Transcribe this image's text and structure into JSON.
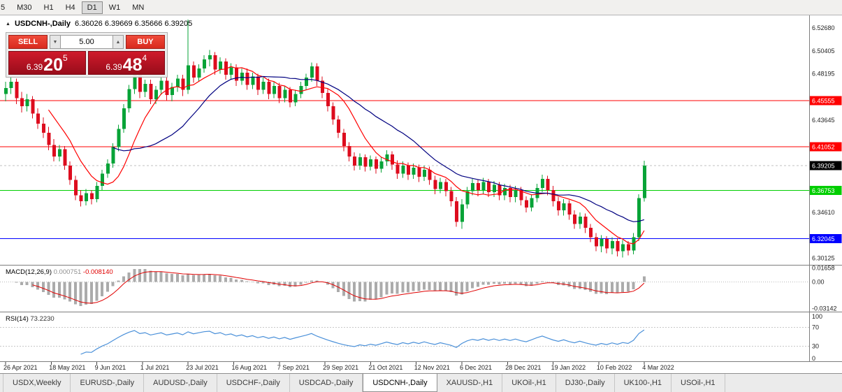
{
  "toolbar": {
    "timeframes": [
      {
        "label": "5",
        "active": false
      },
      {
        "label": "M30",
        "active": false
      },
      {
        "label": "H1",
        "active": false
      },
      {
        "label": "H4",
        "active": false
      },
      {
        "label": "D1",
        "active": true
      },
      {
        "label": "W1",
        "active": false
      },
      {
        "label": "MN",
        "active": false
      }
    ]
  },
  "chart_header": {
    "icon": "▲",
    "title": "USDCNH-,Daily",
    "ohlc": "6.36026 6.39669 6.35666 6.39205"
  },
  "trade_panel": {
    "sell_label": "SELL",
    "buy_label": "BUY",
    "lot": "5.00",
    "spin_down": "▼",
    "spin_up": "▲",
    "bid": {
      "prefix": "6.39",
      "big": "20",
      "sup": "5"
    },
    "ask": {
      "prefix": "6.39",
      "big": "48",
      "sup": "4"
    }
  },
  "chart_data": {
    "type": "candlestick",
    "symbol": "USDCNH-",
    "timeframe": "Daily",
    "price_min": 6.2955,
    "price_max": 6.539,
    "bull_color": "#07a337",
    "bear_color": "#dd0c1e",
    "candles": [
      [
        6.462,
        6.474,
        6.455,
        6.468
      ],
      [
        6.468,
        6.479,
        6.462,
        6.474
      ],
      [
        6.474,
        6.477,
        6.452,
        6.458
      ],
      [
        6.458,
        6.464,
        6.444,
        6.45
      ],
      [
        6.45,
        6.462,
        6.445,
        6.457
      ],
      [
        6.457,
        6.46,
        6.438,
        6.443
      ],
      [
        6.443,
        6.448,
        6.428,
        6.433
      ],
      [
        6.433,
        6.439,
        6.419,
        6.424
      ],
      [
        6.424,
        6.43,
        6.407,
        6.412
      ],
      [
        6.412,
        6.418,
        6.396,
        6.401
      ],
      [
        6.401,
        6.412,
        6.396,
        6.408
      ],
      [
        6.408,
        6.411,
        6.388,
        6.392
      ],
      [
        6.392,
        6.396,
        6.373,
        6.378
      ],
      [
        6.378,
        6.382,
        6.358,
        6.363
      ],
      [
        6.363,
        6.368,
        6.352,
        6.357
      ],
      [
        6.357,
        6.369,
        6.353,
        6.365
      ],
      [
        6.365,
        6.368,
        6.354,
        6.359
      ],
      [
        6.359,
        6.376,
        6.356,
        6.372
      ],
      [
        6.372,
        6.388,
        6.368,
        6.384
      ],
      [
        6.384,
        6.398,
        6.38,
        6.394
      ],
      [
        6.394,
        6.414,
        6.39,
        6.41
      ],
      [
        6.41,
        6.432,
        6.406,
        6.428
      ],
      [
        6.428,
        6.452,
        6.424,
        6.448
      ],
      [
        6.448,
        6.471,
        6.444,
        6.467
      ],
      [
        6.467,
        6.489,
        6.462,
        6.483
      ],
      [
        6.483,
        6.487,
        6.458,
        6.464
      ],
      [
        6.464,
        6.476,
        6.459,
        6.472
      ],
      [
        6.472,
        6.476,
        6.452,
        6.457
      ],
      [
        6.457,
        6.47,
        6.452,
        6.466
      ],
      [
        6.466,
        6.479,
        6.461,
        6.475
      ],
      [
        6.475,
        6.479,
        6.456,
        6.461
      ],
      [
        6.461,
        6.473,
        6.455,
        6.469
      ],
      [
        6.469,
        6.481,
        6.464,
        6.477
      ],
      [
        6.477,
        6.481,
        6.46,
        6.466
      ],
      [
        6.466,
        6.535,
        6.462,
        6.49
      ],
      [
        6.49,
        6.494,
        6.473,
        6.478
      ],
      [
        6.478,
        6.491,
        6.474,
        6.487
      ],
      [
        6.487,
        6.5,
        6.483,
        6.496
      ],
      [
        6.496,
        6.505,
        6.489,
        6.5
      ],
      [
        6.5,
        6.503,
        6.481,
        6.486
      ],
      [
        6.486,
        6.498,
        6.482,
        6.494
      ],
      [
        6.494,
        6.497,
        6.476,
        6.481
      ],
      [
        6.481,
        6.492,
        6.476,
        6.488
      ],
      [
        6.488,
        6.491,
        6.47,
        6.475
      ],
      [
        6.475,
        6.487,
        6.471,
        6.483
      ],
      [
        6.483,
        6.487,
        6.466,
        6.471
      ],
      [
        6.471,
        6.483,
        6.467,
        6.479
      ],
      [
        6.479,
        6.482,
        6.461,
        6.466
      ],
      [
        6.466,
        6.478,
        6.462,
        6.474
      ],
      [
        6.474,
        6.477,
        6.457,
        6.462
      ],
      [
        6.462,
        6.474,
        6.458,
        6.47
      ],
      [
        6.47,
        6.473,
        6.453,
        6.458
      ],
      [
        6.458,
        6.47,
        6.454,
        6.466
      ],
      [
        6.466,
        6.469,
        6.449,
        6.454
      ],
      [
        6.454,
        6.466,
        6.45,
        6.462
      ],
      [
        6.462,
        6.474,
        6.458,
        6.47
      ],
      [
        6.47,
        6.482,
        6.466,
        6.478
      ],
      [
        6.478,
        6.493,
        6.474,
        6.489
      ],
      [
        6.489,
        6.492,
        6.47,
        6.475
      ],
      [
        6.475,
        6.479,
        6.458,
        6.463
      ],
      [
        6.463,
        6.467,
        6.445,
        6.45
      ],
      [
        6.45,
        6.454,
        6.432,
        6.437
      ],
      [
        6.437,
        6.441,
        6.419,
        6.424
      ],
      [
        6.424,
        6.428,
        6.406,
        6.411
      ],
      [
        6.411,
        6.415,
        6.396,
        6.401
      ],
      [
        6.401,
        6.405,
        6.387,
        6.392
      ],
      [
        6.392,
        6.404,
        6.388,
        6.4
      ],
      [
        6.4,
        6.403,
        6.386,
        6.391
      ],
      [
        6.391,
        6.402,
        6.387,
        6.398
      ],
      [
        6.398,
        6.401,
        6.384,
        6.389
      ],
      [
        6.389,
        6.4,
        6.385,
        6.396
      ],
      [
        6.396,
        6.407,
        6.392,
        6.403
      ],
      [
        6.403,
        6.406,
        6.388,
        6.393
      ],
      [
        6.393,
        6.397,
        6.379,
        6.384
      ],
      [
        6.384,
        6.396,
        6.38,
        6.392
      ],
      [
        6.392,
        6.395,
        6.378,
        6.383
      ],
      [
        6.383,
        6.394,
        6.379,
        6.39
      ],
      [
        6.39,
        6.393,
        6.376,
        6.381
      ],
      [
        6.381,
        6.392,
        6.377,
        6.388
      ],
      [
        6.388,
        6.391,
        6.373,
        6.378
      ],
      [
        6.378,
        6.382,
        6.364,
        6.369
      ],
      [
        6.369,
        6.38,
        6.365,
        6.376
      ],
      [
        6.376,
        6.379,
        6.362,
        6.367
      ],
      [
        6.367,
        6.371,
        6.352,
        6.357
      ],
      [
        6.357,
        6.361,
        6.332,
        6.337
      ],
      [
        6.337,
        6.359,
        6.33,
        6.354
      ],
      [
        6.354,
        6.371,
        6.35,
        6.367
      ],
      [
        6.367,
        6.379,
        6.363,
        6.375
      ],
      [
        6.375,
        6.378,
        6.362,
        6.368
      ],
      [
        6.368,
        6.38,
        6.364,
        6.376
      ],
      [
        6.376,
        6.379,
        6.361,
        6.366
      ],
      [
        6.366,
        6.377,
        6.361,
        6.373
      ],
      [
        6.373,
        6.376,
        6.358,
        6.363
      ],
      [
        6.363,
        6.374,
        6.358,
        6.37
      ],
      [
        6.37,
        6.373,
        6.356,
        6.361
      ],
      [
        6.361,
        6.372,
        6.356,
        6.368
      ],
      [
        6.368,
        6.371,
        6.353,
        6.358
      ],
      [
        6.358,
        6.362,
        6.346,
        6.351
      ],
      [
        6.351,
        6.364,
        6.347,
        6.36
      ],
      [
        6.36,
        6.374,
        6.356,
        6.37
      ],
      [
        6.37,
        6.383,
        6.366,
        6.379
      ],
      [
        6.379,
        6.382,
        6.363,
        6.368
      ],
      [
        6.368,
        6.372,
        6.352,
        6.357
      ],
      [
        6.357,
        6.361,
        6.343,
        6.348
      ],
      [
        6.348,
        6.359,
        6.343,
        6.355
      ],
      [
        6.355,
        6.358,
        6.339,
        6.344
      ],
      [
        6.344,
        6.348,
        6.33,
        6.335
      ],
      [
        6.335,
        6.346,
        6.33,
        6.342
      ],
      [
        6.342,
        6.345,
        6.326,
        6.331
      ],
      [
        6.331,
        6.335,
        6.317,
        6.322
      ],
      [
        6.322,
        6.326,
        6.308,
        6.313
      ],
      [
        6.313,
        6.324,
        6.307,
        6.32
      ],
      [
        6.32,
        6.323,
        6.306,
        6.311
      ],
      [
        6.311,
        6.322,
        6.305,
        6.318
      ],
      [
        6.318,
        6.321,
        6.303,
        6.308
      ],
      [
        6.308,
        6.319,
        6.302,
        6.315
      ],
      [
        6.315,
        6.318,
        6.304,
        6.309
      ],
      [
        6.309,
        6.326,
        6.305,
        6.322
      ],
      [
        6.322,
        6.364,
        6.318,
        6.36
      ],
      [
        6.36026,
        6.39669,
        6.35666,
        6.39205
      ]
    ],
    "moving_averages": [
      {
        "period": 9,
        "color": "#ff0000"
      },
      {
        "period": 21,
        "color": "#000080"
      }
    ],
    "hlines": [
      {
        "price": 6.45555,
        "label": "6.45555",
        "color": "#ff0000"
      },
      {
        "price": 6.41052,
        "label": "6.41052",
        "color": "#ff0000"
      },
      {
        "price": 6.36753,
        "label": "6.36753",
        "color": "#00ce00"
      },
      {
        "price": 6.32045,
        "label": "6.32045",
        "color": "#0000ff"
      }
    ],
    "current_price": {
      "price": 6.39205,
      "label": "6.39205",
      "color": "#000000"
    },
    "y_axis_labels": [
      {
        "p": 6.5268,
        "t": "6.52680"
      },
      {
        "p": 6.50405,
        "t": "6.50405"
      },
      {
        "p": 6.48195,
        "t": "6.48195"
      },
      {
        "p": 6.43645,
        "t": "6.43645"
      },
      {
        "p": 6.3461,
        "t": "6.34610"
      },
      {
        "p": 6.30125,
        "t": "6.30125"
      }
    ],
    "x_labels": [
      "26 Apr 2021",
      "18 May 2021",
      "9 Jun 2021",
      "1 Jul 2021",
      "23 Jul 2021",
      "16 Aug 2021",
      "7 Sep 2021",
      "29 Sep 2021",
      "21 Oct 2021",
      "12 Nov 2021",
      "6 Dec 2021",
      "28 Dec 2021",
      "19 Jan 2022",
      "10 Feb 2022",
      "4 Mar 2022"
    ],
    "macd": {
      "label": "MACD(12,26,9)",
      "value_main": "0.000751",
      "value_signal": "-0.008140",
      "axis_labels": [
        {
          "v": 0.01658,
          "t": "0.01658"
        },
        {
          "v": 0.0,
          "t": "0.00"
        },
        {
          "v": -0.03142,
          "t": "-0.03142"
        }
      ],
      "range_max": 0.0185,
      "range_min": -0.0345,
      "histogram_color": "#ababab",
      "signal_color": "#e00000"
    },
    "rsi": {
      "label": "RSI(14)",
      "value": "73.2230",
      "axis_labels": [
        100,
        70,
        30,
        0
      ],
      "level_lines": [
        70,
        30
      ],
      "line_color": "#4a90d9"
    }
  },
  "tabs": [
    {
      "label": "USDX,Weekly",
      "active": false
    },
    {
      "label": "EURUSD-,Daily",
      "active": false
    },
    {
      "label": "AUDUSD-,Daily",
      "active": false
    },
    {
      "label": "USDCHF-,Daily",
      "active": false
    },
    {
      "label": "USDCAD-,Daily",
      "active": false
    },
    {
      "label": "USDCNH-,Daily",
      "active": true
    },
    {
      "label": "XAUUSD-,H1",
      "active": false
    },
    {
      "label": "UKOil-,H1",
      "active": false
    },
    {
      "label": "DJ30-,Daily",
      "active": false
    },
    {
      "label": "UK100-,H1",
      "active": false
    },
    {
      "label": "USOil-,H1",
      "active": false
    }
  ]
}
